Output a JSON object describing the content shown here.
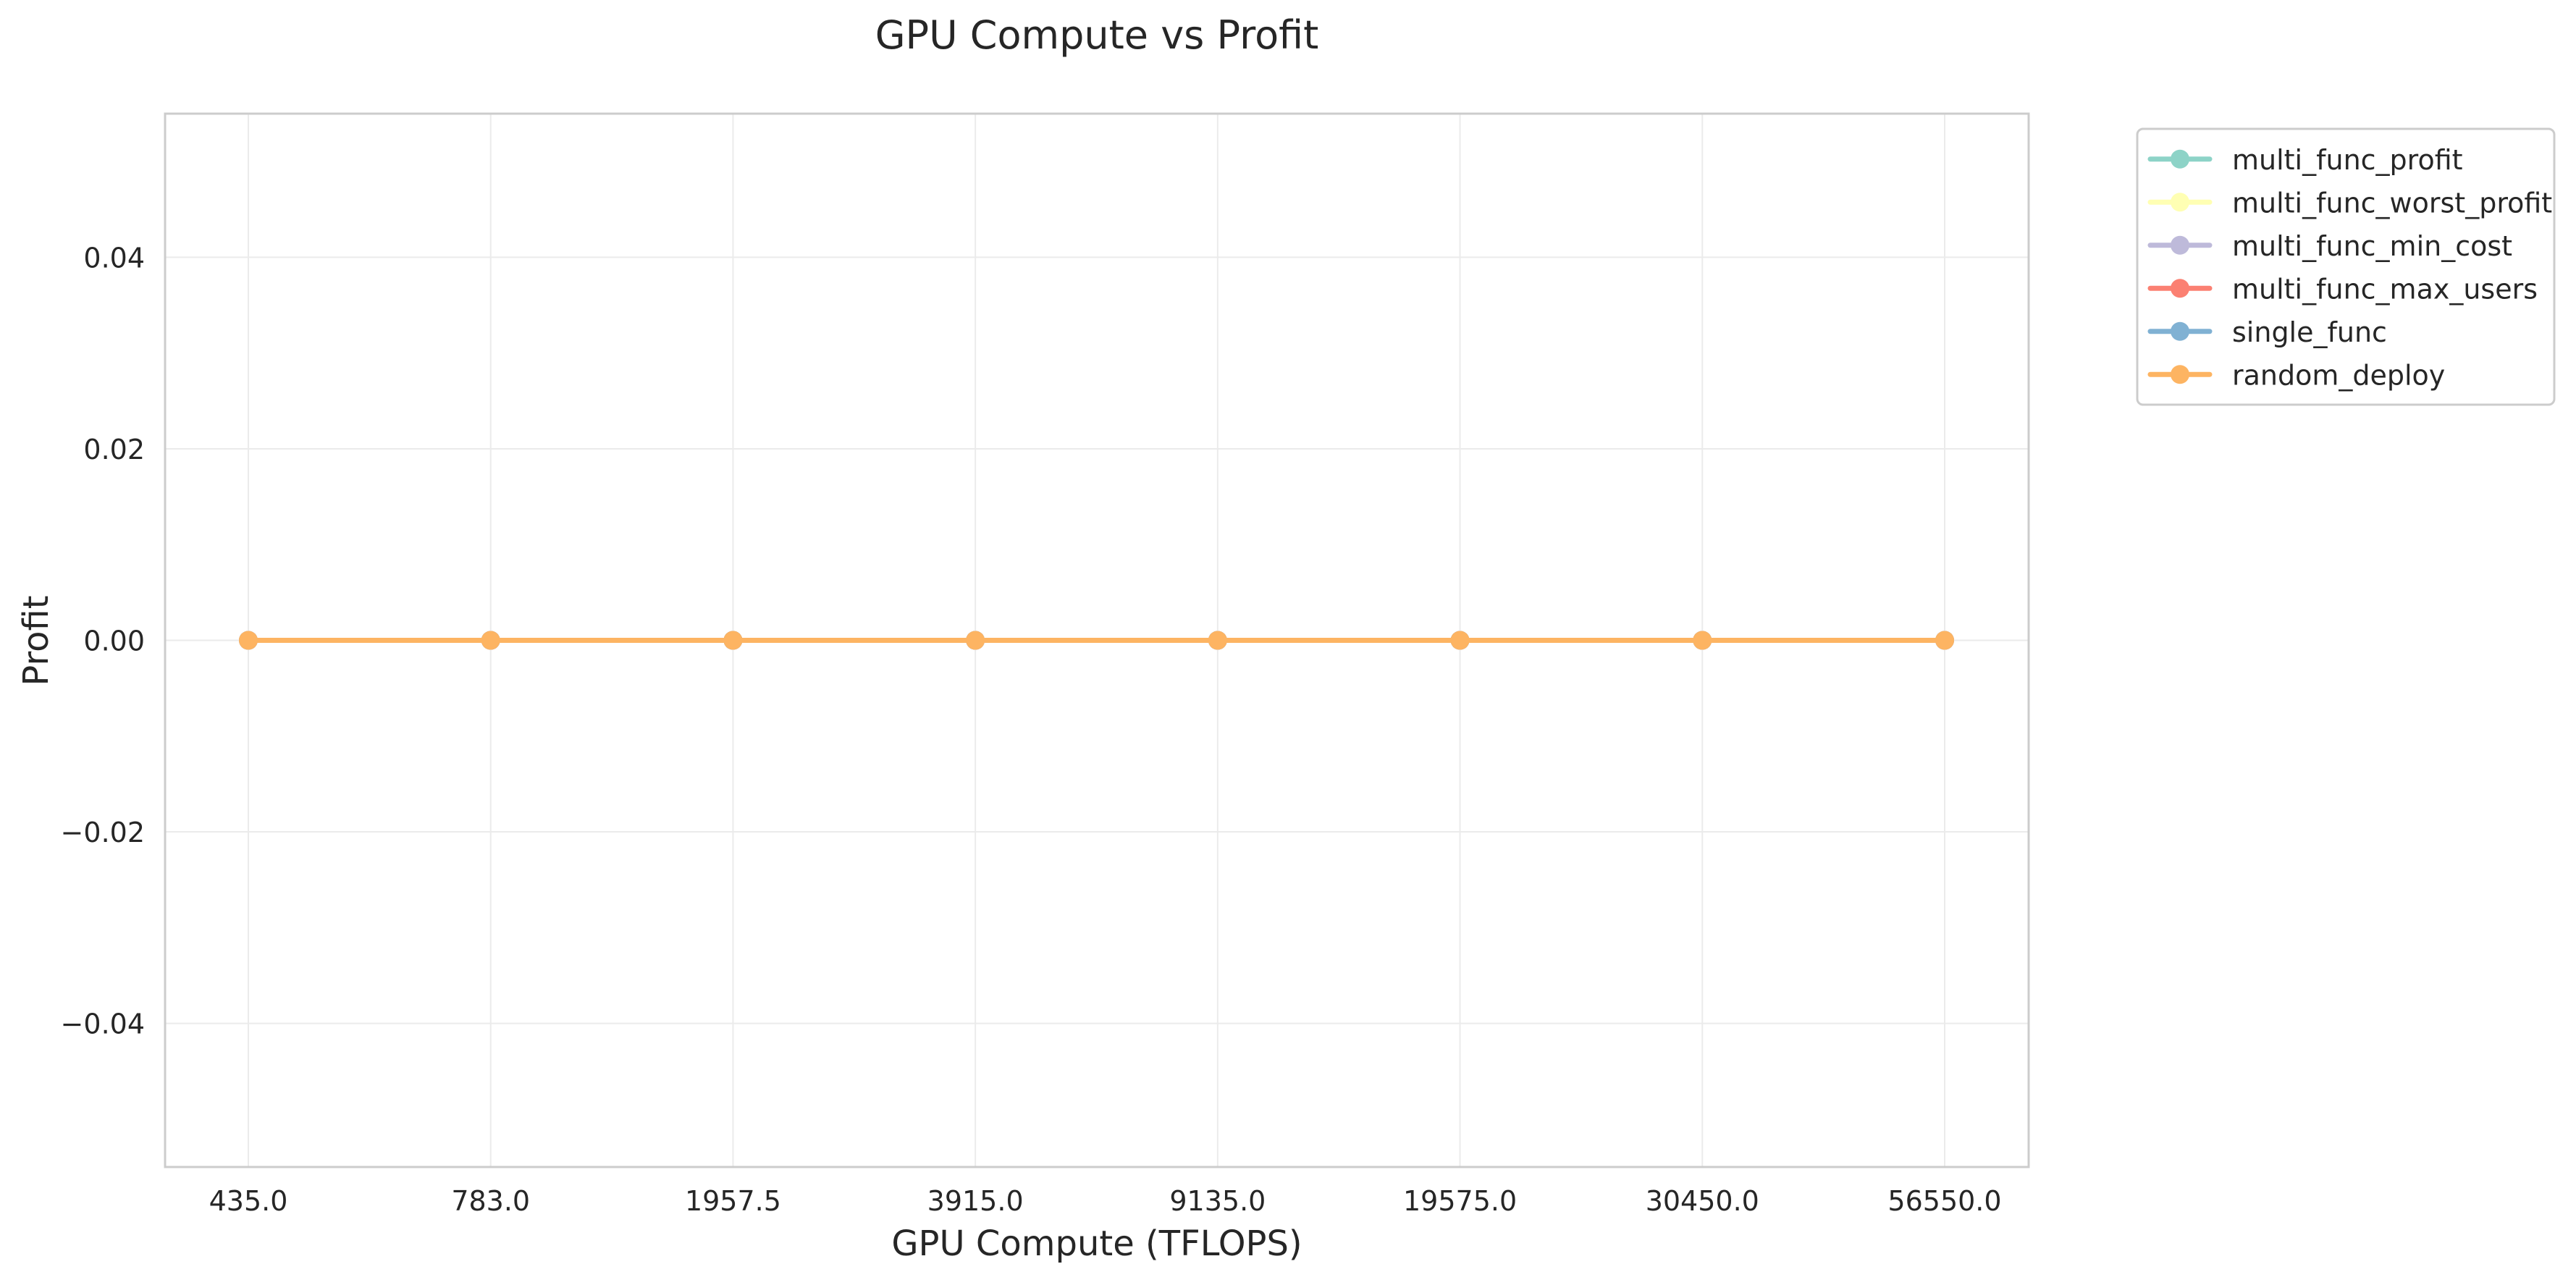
{
  "chart_data": {
    "type": "line",
    "title": "GPU Compute vs Profit",
    "xlabel": "GPU Compute (TFLOPS)",
    "ylabel": "Profit",
    "x": [
      "435.0",
      "783.0",
      "1957.5",
      "3915.0",
      "9135.0",
      "19575.0",
      "30450.0",
      "56550.0"
    ],
    "ylim": [
      -0.055,
      0.055
    ],
    "yticks": [
      -0.04,
      -0.02,
      0.0,
      0.02,
      0.04
    ],
    "ytick_labels": [
      "−0.04",
      "−0.02",
      "0.00",
      "0.02",
      "0.04"
    ],
    "grid": true,
    "legend_position": "outside-upper-right",
    "series": [
      {
        "name": "multi_func_profit",
        "color": "#8dd3c7",
        "values": [
          0,
          0,
          0,
          0,
          0,
          0,
          0,
          0
        ]
      },
      {
        "name": "multi_func_worst_profit",
        "color": "#ffffb3",
        "values": [
          0,
          0,
          0,
          0,
          0,
          0,
          0,
          0
        ]
      },
      {
        "name": "multi_func_min_cost",
        "color": "#bebada",
        "values": [
          0,
          0,
          0,
          0,
          0,
          0,
          0,
          0
        ]
      },
      {
        "name": "multi_func_max_users",
        "color": "#fb8072",
        "values": [
          0,
          0,
          0,
          0,
          0,
          0,
          0,
          0
        ]
      },
      {
        "name": "single_func",
        "color": "#80b1d3",
        "values": [
          0,
          0,
          0,
          0,
          0,
          0,
          0,
          0
        ]
      },
      {
        "name": "random_deploy",
        "color": "#fdb462",
        "values": [
          0,
          0,
          0,
          0,
          0,
          0,
          0,
          0
        ]
      }
    ]
  }
}
